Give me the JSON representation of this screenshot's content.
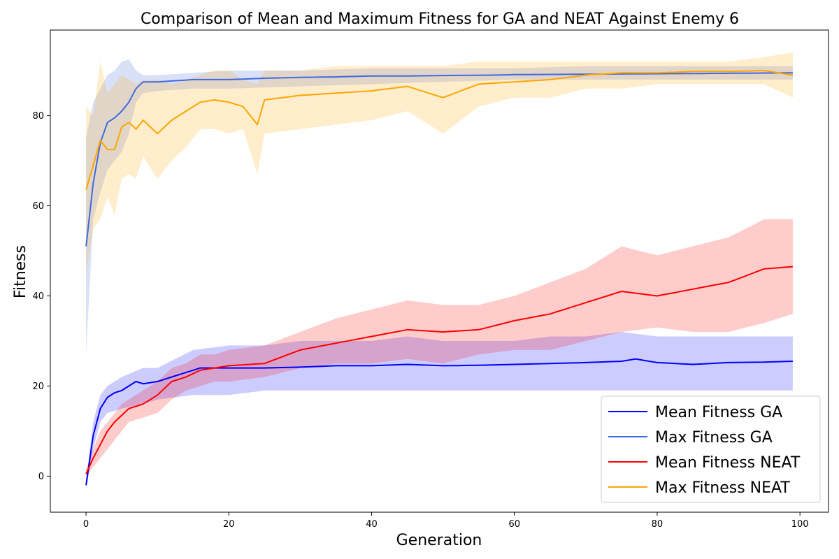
{
  "chart_data": {
    "type": "line",
    "title": "Comparison of Mean and Maximum Fitness for GA and NEAT Against Enemy 6",
    "xlabel": "Generation",
    "ylabel": "Fitness",
    "xlim": [
      -5,
      104
    ],
    "ylim": [
      -8,
      99
    ],
    "xticks": [
      0,
      20,
      40,
      60,
      80,
      100
    ],
    "yticks": [
      0,
      20,
      40,
      60,
      80
    ],
    "grid": false,
    "legend_position": "bottom-right",
    "series": [
      {
        "name": "Mean Fitness GA",
        "color": "#0000ff",
        "band_color": "#0000ff",
        "band_opacity": 0.2,
        "knots": [
          [
            0,
            -2
          ],
          [
            1,
            9
          ],
          [
            2,
            15
          ],
          [
            3,
            17.5
          ],
          [
            4,
            18.5
          ],
          [
            5,
            19
          ],
          [
            6,
            20
          ],
          [
            7,
            21
          ],
          [
            8,
            20.5
          ],
          [
            10,
            21
          ],
          [
            12,
            22
          ],
          [
            14,
            23
          ],
          [
            16,
            24
          ],
          [
            18,
            24
          ],
          [
            20,
            24
          ],
          [
            25,
            24
          ],
          [
            30,
            24.2
          ],
          [
            35,
            24.5
          ],
          [
            40,
            24.5
          ],
          [
            45,
            24.8
          ],
          [
            50,
            24.5
          ],
          [
            55,
            24.6
          ],
          [
            60,
            24.8
          ],
          [
            65,
            25
          ],
          [
            70,
            25.2
          ],
          [
            75,
            25.5
          ],
          [
            77,
            26
          ],
          [
            80,
            25.2
          ],
          [
            85,
            24.8
          ],
          [
            90,
            25.2
          ],
          [
            95,
            25.3
          ],
          [
            99,
            25.5
          ]
        ],
        "band_knots": [
          [
            0,
            -3,
            -1
          ],
          [
            1,
            6,
            12
          ],
          [
            2,
            12,
            18
          ],
          [
            3,
            14,
            20
          ],
          [
            5,
            15,
            22
          ],
          [
            8,
            16,
            24
          ],
          [
            10,
            17,
            24
          ],
          [
            15,
            18,
            28
          ],
          [
            20,
            18,
            29
          ],
          [
            25,
            19,
            29
          ],
          [
            30,
            19,
            30
          ],
          [
            35,
            19,
            30
          ],
          [
            40,
            19,
            30
          ],
          [
            45,
            19,
            31
          ],
          [
            50,
            19,
            30
          ],
          [
            55,
            19,
            30
          ],
          [
            60,
            19,
            30
          ],
          [
            65,
            19,
            31
          ],
          [
            70,
            19,
            31
          ],
          [
            75,
            19,
            32
          ],
          [
            80,
            19,
            31
          ],
          [
            85,
            19,
            31
          ],
          [
            90,
            19,
            31
          ],
          [
            95,
            19,
            31
          ],
          [
            99,
            19,
            31
          ]
        ]
      },
      {
        "name": "Max Fitness GA",
        "color": "#4169e1",
        "band_color": "#4169e1",
        "band_opacity": 0.2,
        "knots": [
          [
            0,
            51
          ],
          [
            1,
            65
          ],
          [
            2,
            74
          ],
          [
            3,
            78.5
          ],
          [
            4,
            79.5
          ],
          [
            5,
            81
          ],
          [
            6,
            83
          ],
          [
            7,
            86
          ],
          [
            8,
            87.5
          ],
          [
            10,
            87.5
          ],
          [
            15,
            88
          ],
          [
            20,
            88
          ],
          [
            25,
            88.3
          ],
          [
            30,
            88.5
          ],
          [
            35,
            88.6
          ],
          [
            40,
            88.8
          ],
          [
            45,
            88.8
          ],
          [
            50,
            88.9
          ],
          [
            57,
            89
          ],
          [
            60,
            89.1
          ],
          [
            70,
            89.2
          ],
          [
            80,
            89.3
          ],
          [
            90,
            89.4
          ],
          [
            99,
            89.5
          ]
        ],
        "band_knots": [
          [
            0,
            27,
            75
          ],
          [
            1,
            57,
            83
          ],
          [
            2,
            63,
            86
          ],
          [
            3,
            68,
            89
          ],
          [
            4,
            70,
            90
          ],
          [
            5,
            72,
            92
          ],
          [
            6,
            76,
            92.5
          ],
          [
            7,
            83,
            90
          ],
          [
            8,
            85,
            89
          ],
          [
            10,
            85.5,
            89
          ],
          [
            15,
            86,
            89.5
          ],
          [
            20,
            86,
            90
          ],
          [
            30,
            86.5,
            90
          ],
          [
            40,
            87,
            90.5
          ],
          [
            50,
            87.5,
            90.5
          ],
          [
            60,
            88,
            90.5
          ],
          [
            70,
            88,
            91
          ],
          [
            80,
            88,
            91
          ],
          [
            90,
            88,
            91
          ],
          [
            99,
            88,
            91
          ]
        ]
      },
      {
        "name": "Mean Fitness NEAT",
        "color": "#ff0000",
        "band_color": "#ff0000",
        "band_opacity": 0.2,
        "knots": [
          [
            0,
            0.5
          ],
          [
            1,
            4
          ],
          [
            2,
            7
          ],
          [
            3,
            10
          ],
          [
            4,
            12
          ],
          [
            5,
            13.5
          ],
          [
            6,
            15
          ],
          [
            8,
            16
          ],
          [
            10,
            18
          ],
          [
            12,
            21
          ],
          [
            14,
            22
          ],
          [
            16,
            23.5
          ],
          [
            18,
            24
          ],
          [
            20,
            24.5
          ],
          [
            25,
            25
          ],
          [
            30,
            28
          ],
          [
            35,
            29.5
          ],
          [
            40,
            31
          ],
          [
            45,
            32.5
          ],
          [
            50,
            32
          ],
          [
            55,
            32.5
          ],
          [
            60,
            34.5
          ],
          [
            65,
            36
          ],
          [
            70,
            38.5
          ],
          [
            75,
            41
          ],
          [
            80,
            40
          ],
          [
            85,
            41.5
          ],
          [
            90,
            43
          ],
          [
            95,
            46
          ],
          [
            99,
            46.5
          ]
        ],
        "band_knots": [
          [
            0,
            0,
            1.5
          ],
          [
            1,
            2,
            6
          ],
          [
            2,
            4,
            10
          ],
          [
            3,
            6,
            12
          ],
          [
            4,
            8,
            14
          ],
          [
            5,
            10,
            16
          ],
          [
            6,
            12,
            17
          ],
          [
            8,
            13,
            19
          ],
          [
            10,
            14,
            21
          ],
          [
            12,
            17,
            24
          ],
          [
            14,
            19,
            25
          ],
          [
            16,
            20,
            27
          ],
          [
            18,
            21,
            27
          ],
          [
            20,
            21,
            28
          ],
          [
            25,
            22,
            29
          ],
          [
            30,
            24,
            32
          ],
          [
            35,
            25,
            35
          ],
          [
            40,
            25,
            37
          ],
          [
            45,
            26,
            39
          ],
          [
            50,
            25,
            38
          ],
          [
            55,
            27,
            38
          ],
          [
            60,
            28,
            40
          ],
          [
            65,
            28,
            43
          ],
          [
            70,
            30,
            46
          ],
          [
            75,
            32,
            51
          ],
          [
            80,
            33,
            49
          ],
          [
            85,
            32,
            51
          ],
          [
            90,
            32,
            53
          ],
          [
            95,
            34,
            57
          ],
          [
            99,
            36,
            57
          ]
        ]
      },
      {
        "name": "Max Fitness NEAT",
        "color": "#ffa500",
        "band_color": "#ffa500",
        "band_opacity": 0.2,
        "knots": [
          [
            0,
            63.5
          ],
          [
            1,
            69
          ],
          [
            2,
            74.5
          ],
          [
            3,
            72.5
          ],
          [
            4,
            72.5
          ],
          [
            5,
            77.5
          ],
          [
            6,
            78.5
          ],
          [
            7,
            77
          ],
          [
            8,
            79
          ],
          [
            10,
            76
          ],
          [
            12,
            79
          ],
          [
            14,
            81
          ],
          [
            16,
            83
          ],
          [
            18,
            83.5
          ],
          [
            20,
            83
          ],
          [
            22,
            82
          ],
          [
            24,
            78
          ],
          [
            25,
            83.5
          ],
          [
            30,
            84.5
          ],
          [
            35,
            85
          ],
          [
            40,
            85.5
          ],
          [
            45,
            86.5
          ],
          [
            50,
            84
          ],
          [
            55,
            87
          ],
          [
            60,
            87.5
          ],
          [
            65,
            88
          ],
          [
            70,
            89
          ],
          [
            75,
            89.5
          ],
          [
            80,
            89.5
          ],
          [
            85,
            89.8
          ],
          [
            90,
            89.8
          ],
          [
            95,
            90
          ],
          [
            99,
            89
          ]
        ],
        "band_knots": [
          [
            0,
            45,
            82
          ],
          [
            1,
            55,
            80
          ],
          [
            2,
            57,
            92
          ],
          [
            3,
            62,
            85
          ],
          [
            4,
            58,
            87
          ],
          [
            5,
            66,
            89
          ],
          [
            6,
            67,
            88
          ],
          [
            7,
            66,
            87
          ],
          [
            8,
            71,
            88
          ],
          [
            10,
            66,
            88
          ],
          [
            12,
            70,
            87
          ],
          [
            14,
            73,
            88
          ],
          [
            16,
            77,
            89
          ],
          [
            18,
            77,
            90
          ],
          [
            20,
            76,
            90
          ],
          [
            22,
            77,
            88
          ],
          [
            24,
            67,
            87
          ],
          [
            25,
            76,
            90
          ],
          [
            30,
            77,
            90
          ],
          [
            35,
            78,
            91
          ],
          [
            40,
            79,
            91
          ],
          [
            45,
            81,
            91
          ],
          [
            50,
            76,
            91
          ],
          [
            55,
            82,
            92
          ],
          [
            60,
            84,
            92
          ],
          [
            65,
            84,
            92
          ],
          [
            70,
            86,
            92
          ],
          [
            75,
            86,
            92
          ],
          [
            80,
            87,
            92
          ],
          [
            85,
            87,
            92
          ],
          [
            90,
            87,
            92
          ],
          [
            95,
            87,
            93
          ],
          [
            99,
            84,
            94
          ]
        ]
      }
    ]
  }
}
